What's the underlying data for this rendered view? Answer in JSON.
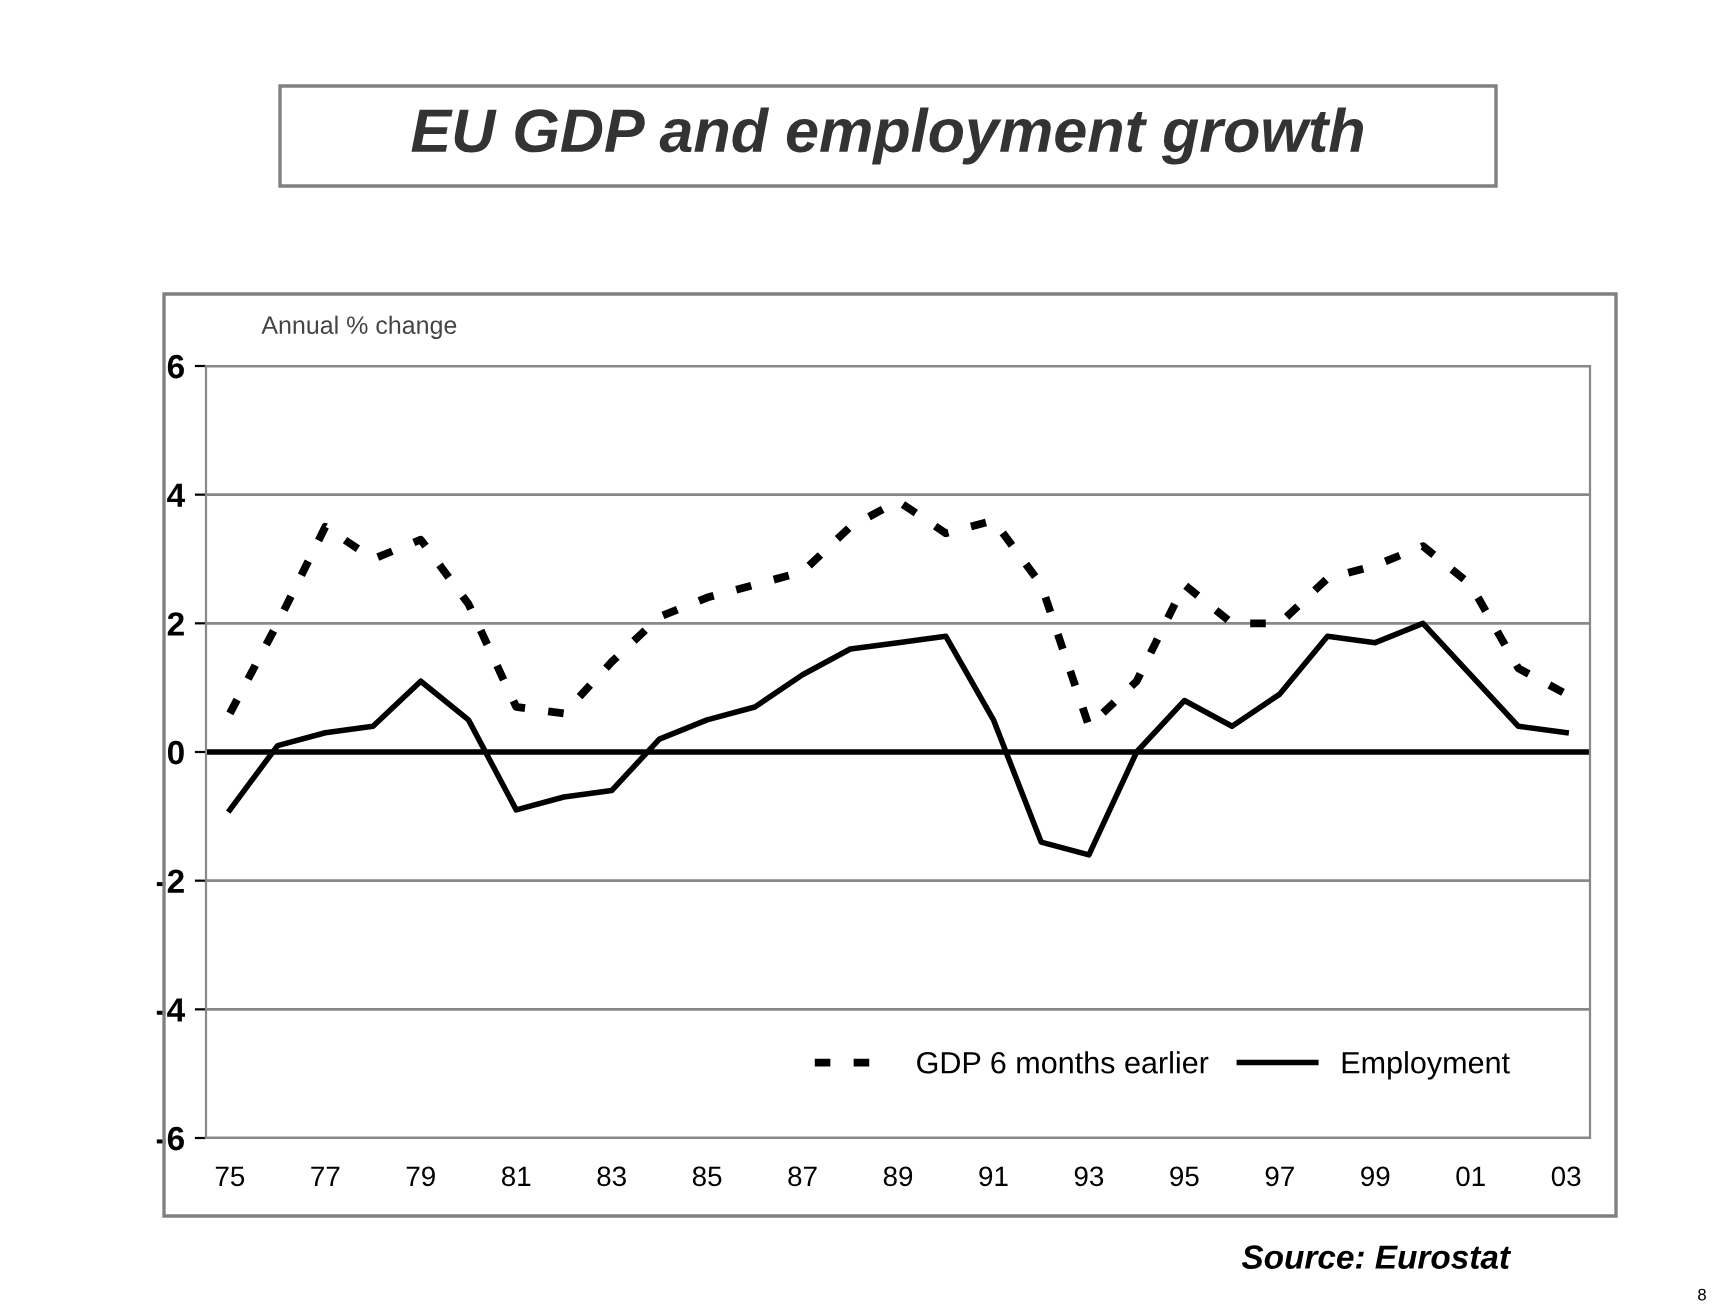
{
  "chart_data": {
    "type": "line",
    "title": "EU GDP and employment growth",
    "ylabel": "Annual % change",
    "categories": [
      "75",
      null,
      "77",
      null,
      "79",
      null,
      "81",
      null,
      "83",
      null,
      "85",
      null,
      "87",
      null,
      "89",
      null,
      "91",
      null,
      "93",
      null,
      "95",
      null,
      "97",
      null,
      "99",
      null,
      "01",
      null,
      "03"
    ],
    "series": [
      {
        "name": "GDP 6 months earlier",
        "color": "#000000",
        "line_style": "dotted",
        "values": [
          0.6,
          2.0,
          3.5,
          3.0,
          3.3,
          2.3,
          0.7,
          0.6,
          1.4,
          2.1,
          2.4,
          2.6,
          2.8,
          3.5,
          3.9,
          3.4,
          3.6,
          2.6,
          0.4,
          1.1,
          2.6,
          2.0,
          2.0,
          2.7,
          2.9,
          3.2,
          2.6,
          1.3,
          0.9
        ]
      },
      {
        "name": "Employment",
        "color": "#000000",
        "line_style": "solid",
        "values": [
          -0.9,
          0.1,
          0.3,
          0.4,
          1.1,
          0.5,
          -0.9,
          -0.7,
          -0.6,
          0.2,
          0.5,
          0.7,
          1.2,
          1.6,
          1.7,
          1.8,
          0.5,
          -1.4,
          -1.6,
          0.0,
          0.8,
          0.4,
          0.9,
          1.8,
          1.7,
          2.0,
          1.2,
          0.4,
          0.3
        ]
      }
    ],
    "ylim": [
      -6,
      6
    ],
    "yticks": [
      -6,
      -4,
      -2,
      0,
      2,
      4,
      6
    ],
    "grid": "y",
    "legend": "bottom",
    "marker": "none",
    "ref_lines": [
      {
        "axis": "y",
        "value": 0,
        "color": "#000000"
      }
    ],
    "annotations": [
      "Source: Eurostat",
      "8"
    ]
  }
}
